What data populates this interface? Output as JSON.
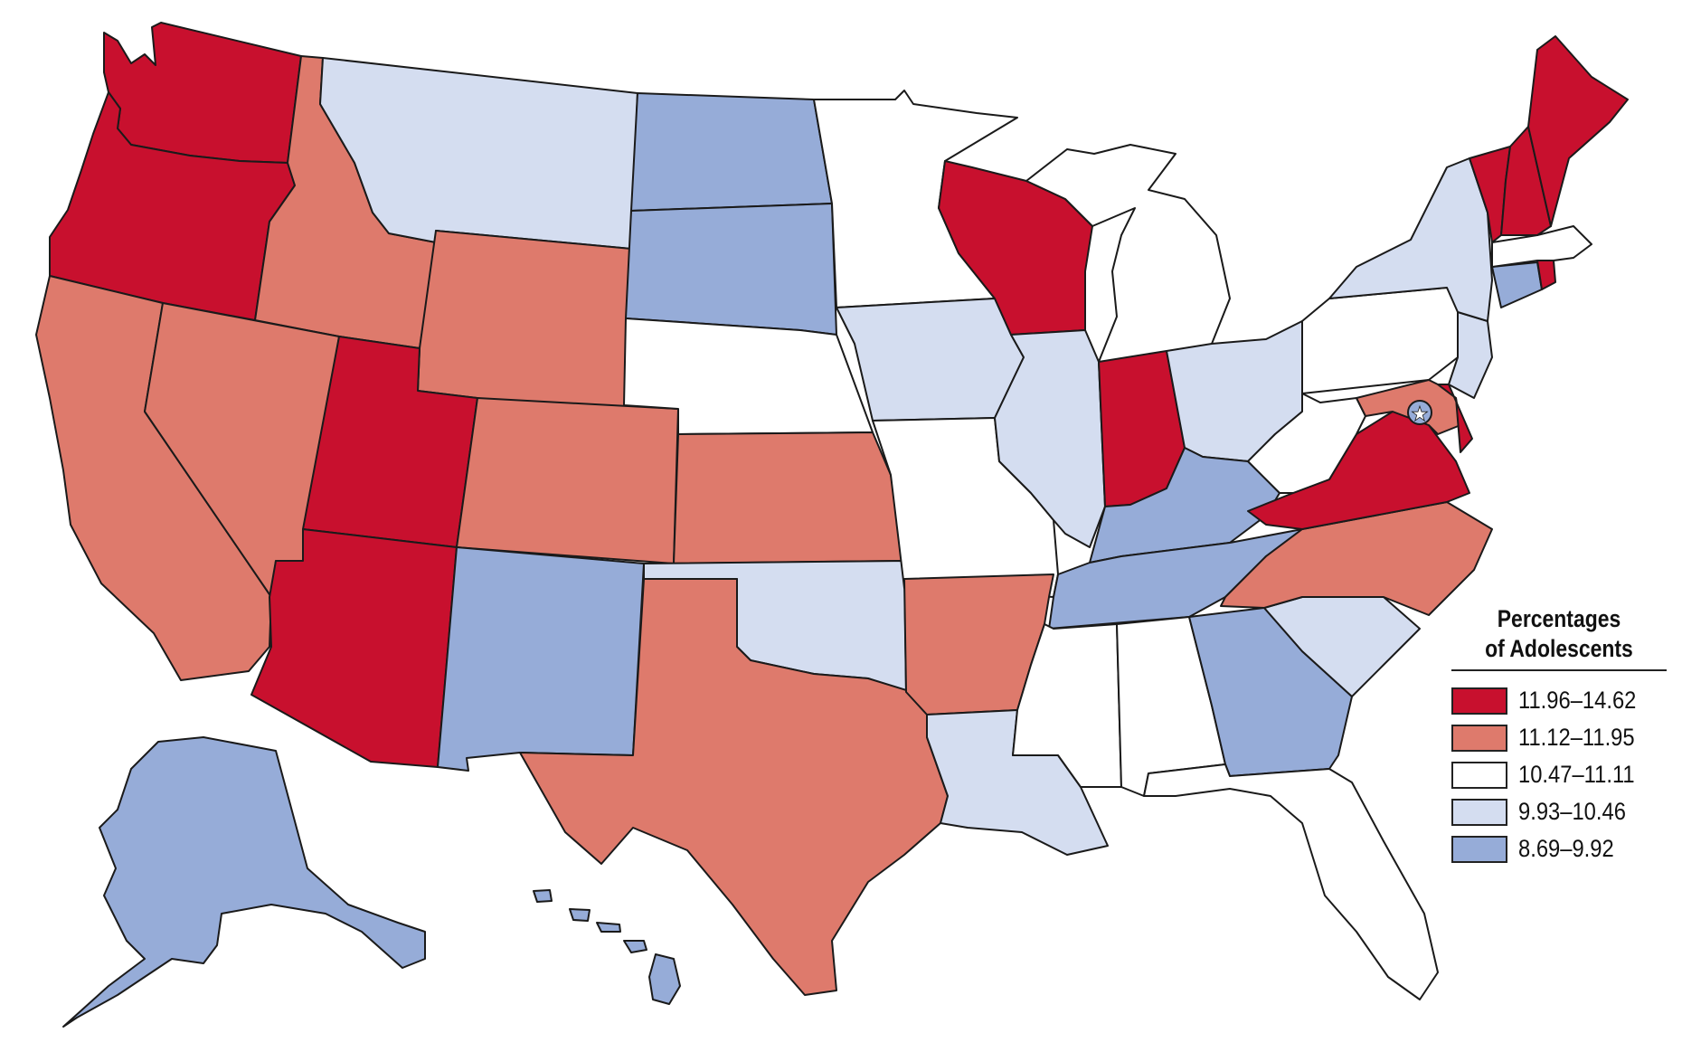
{
  "legend": {
    "title_line1": "Percentages",
    "title_line2": "of Adolescents",
    "classes": [
      {
        "label": "11.96–14.62",
        "color": "#c8102e"
      },
      {
        "label": "11.12–11.95",
        "color": "#de7a6c"
      },
      {
        "label": "10.47–11.11",
        "color": "#ffffff"
      },
      {
        "label": "9.93–10.46",
        "color": "#d4ddf0"
      },
      {
        "label": "8.69–9.92",
        "color": "#96acd8"
      }
    ]
  },
  "states": {
    "WA": 0,
    "OR": 0,
    "UT": 0,
    "AZ": 0,
    "WI": 0,
    "IN": 0,
    "VA": 0,
    "ME": 0,
    "VT": 0,
    "NH": 0,
    "RI": 0,
    "DE": 0,
    "ID": 1,
    "CA": 1,
    "NV": 1,
    "WY": 1,
    "CO": 1,
    "KS": 1,
    "TX": 1,
    "AR": 1,
    "NC": 1,
    "MD": 1,
    "MN": 2,
    "NE": 2,
    "MO": 2,
    "MS": 2,
    "AL": 2,
    "FL": 2,
    "MI": 2,
    "PA": 2,
    "WV": 2,
    "MA": 2,
    "MT": 3,
    "IA": 3,
    "IL": 3,
    "OH": 3,
    "OK": 3,
    "LA": 3,
    "SC": 3,
    "NY": 3,
    "NJ": 3,
    "ND": 4,
    "SD": 4,
    "NM": 4,
    "KY": 4,
    "TN": 4,
    "GA": 4,
    "CT": 4,
    "AK": 4,
    "HI": 4,
    "DC": 4
  }
}
